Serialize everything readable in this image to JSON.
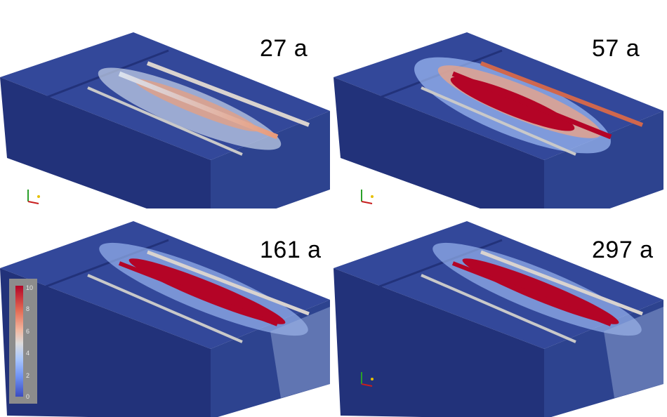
{
  "panels": [
    {
      "time_label": "27 a"
    },
    {
      "time_label": "57 a"
    },
    {
      "time_label": "161 a"
    },
    {
      "time_label": "297 a"
    }
  ],
  "colorbar": {
    "ticks": [
      "10",
      "8",
      "6",
      "4",
      "2",
      "0"
    ],
    "colors": [
      "#3b4cc0",
      "#dddcdc",
      "#b40426"
    ]
  },
  "block_color": "#2a3d8f"
}
